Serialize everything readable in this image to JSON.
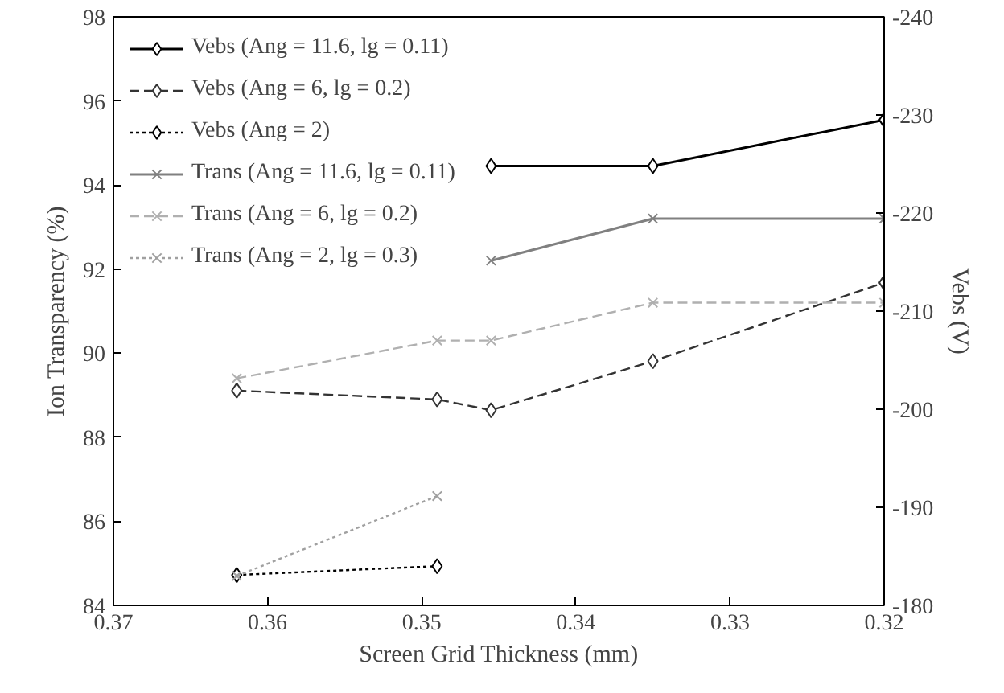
{
  "chart_data": {
    "type": "line",
    "xlabel": "Screen Grid Thickness (mm)",
    "ylabel": "Ion Transparency (%)",
    "y2label": "Vebs (V)",
    "xlim": [
      0.37,
      0.32
    ],
    "xticks": [
      0.37,
      0.36,
      0.35,
      0.34,
      0.33,
      0.32
    ],
    "ylim": [
      84,
      98
    ],
    "yticks": [
      84,
      86,
      88,
      90,
      92,
      94,
      96,
      98
    ],
    "y2lim": [
      -180,
      -240
    ],
    "y2ticks": [
      -180,
      -190,
      -200,
      -210,
      -220,
      -230,
      -240
    ],
    "grid": false,
    "legend": "top left",
    "series": [
      {
        "name": "Vebs (Ang = 11.6, lg = 0.11)",
        "color": "#000000",
        "axis": "y2",
        "marker": "diamond",
        "line_style": "solid",
        "x": [
          0.3455,
          0.335,
          0.32
        ],
        "values": [
          -224.8,
          -224.8,
          -229.5
        ]
      },
      {
        "name": "Vebs (Ang = 6, lg = 0.2)",
        "color": "#333333",
        "axis": "y2",
        "marker": "diamond",
        "line_style": "dashed",
        "x": [
          0.362,
          0.349,
          0.3455,
          0.335,
          0.32
        ],
        "values": [
          -201.9,
          -201.0,
          -199.9,
          -204.9,
          -212.9
        ]
      },
      {
        "name": "Vebs (Ang = 2)",
        "color": "#000000",
        "axis": "y2",
        "marker": "diamond",
        "line_style": "dotted",
        "x": [
          0.362,
          0.349
        ],
        "values": [
          -183.1,
          -184.0
        ]
      },
      {
        "name": "Trans (Ang = 11.6, lg = 0.11)",
        "color": "#808080",
        "marker": "cross",
        "line_style": "solid",
        "x": [
          0.3455,
          0.335,
          0.32
        ],
        "values": [
          92.2,
          93.2,
          93.2
        ]
      },
      {
        "name": "Trans (Ang = 6, lg = 0.2)",
        "color": "#b0b0b0",
        "marker": "cross",
        "line_style": "dashed",
        "x": [
          0.362,
          0.349,
          0.3455,
          0.335,
          0.32
        ],
        "values": [
          89.4,
          90.3,
          90.3,
          91.2,
          91.2
        ]
      },
      {
        "name": "Trans (Ang = 2, lg = 0.3)",
        "color": "#a0a0a0",
        "marker": "cross",
        "line_style": "dotted",
        "x": [
          0.362,
          0.349
        ],
        "values": [
          84.7,
          86.6
        ]
      }
    ]
  }
}
